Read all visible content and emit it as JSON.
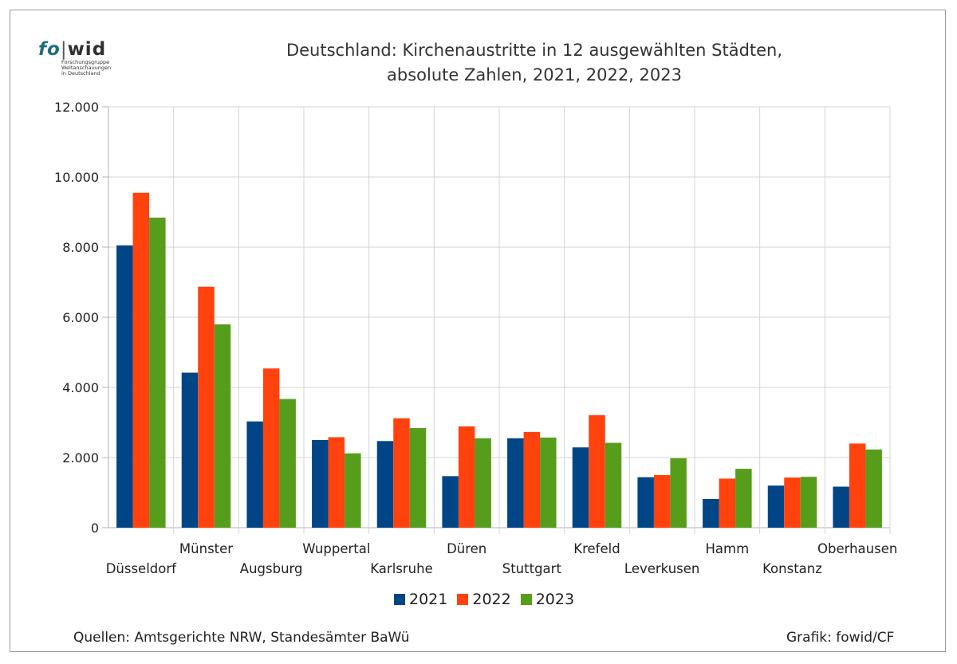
{
  "logo": {
    "fo": "fo",
    "bar": "|",
    "wid": "wid",
    "sub_lines": [
      "Forschungsgruppe",
      "Weltanschauungen",
      "in Deutschland"
    ]
  },
  "title_lines": [
    "Deutschland: Kirchenaustritte in 12 ausgewählten Städten,",
    "absolute Zahlen, 2021, 2022, 2023"
  ],
  "footer": {
    "source": "Quellen: Amtsgerichte NRW, Standesämter BaWü",
    "credit": "Grafik: fowid/CF"
  },
  "chart_data": {
    "type": "bar",
    "categories": [
      "Düsseldorf",
      "Münster",
      "Augsburg",
      "Wuppertal",
      "Karlsruhe",
      "Düren",
      "Stuttgart",
      "Krefeld",
      "Leverkusen",
      "Hamm",
      "Konstanz",
      "Oberhausen"
    ],
    "series": [
      {
        "name": "2021",
        "color": "#004586",
        "values": [
          8050,
          4420,
          3030,
          2500,
          2470,
          1470,
          2550,
          2290,
          1440,
          820,
          1200,
          1170
        ]
      },
      {
        "name": "2022",
        "color": "#ff420e",
        "values": [
          9550,
          6870,
          4540,
          2580,
          3120,
          2890,
          2730,
          3210,
          1500,
          1400,
          1430,
          2400
        ]
      },
      {
        "name": "2023",
        "color": "#579d1c",
        "values": [
          8840,
          5800,
          3670,
          2120,
          2840,
          2550,
          2570,
          2420,
          1980,
          1680,
          1450,
          2230
        ]
      }
    ],
    "ylim": [
      0,
      12000
    ],
    "yticks": [
      0,
      2000,
      4000,
      6000,
      8000,
      10000,
      12000
    ],
    "ytick_labels": [
      "0",
      "2.000",
      "4.000",
      "6.000",
      "8.000",
      "10.000",
      "12.000"
    ],
    "grid": true,
    "legend": "bottom-center"
  }
}
